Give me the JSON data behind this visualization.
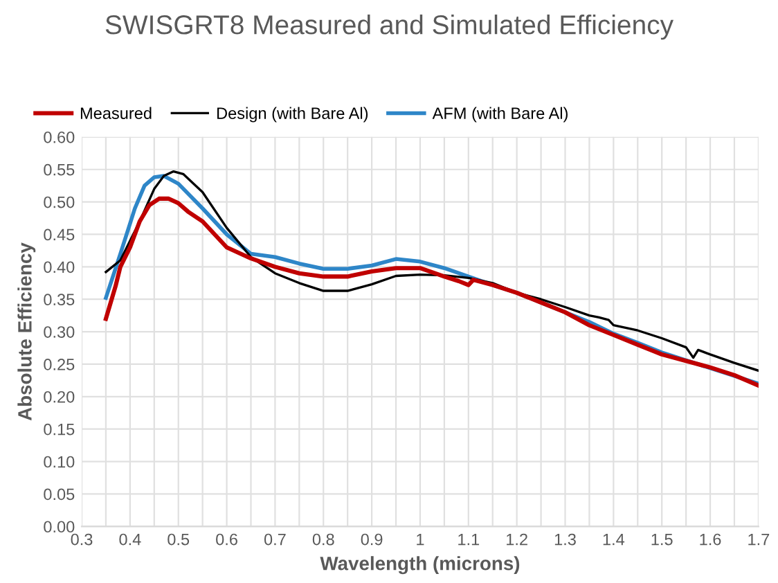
{
  "chart_data": {
    "type": "line",
    "title": "SWISGRT8 Measured and Simulated Efficiency",
    "xlabel": "Wavelength (microns)",
    "ylabel": "Absolute Efficiency",
    "xlim": [
      0.3,
      1.7
    ],
    "xticks": [
      0.3,
      {
        "value": 0.35,
        "label": null
      },
      0.4,
      {
        "value": 0.45,
        "label": null
      },
      0.5,
      {
        "value": 0.55,
        "label": null
      },
      0.6,
      {
        "value": 0.65,
        "label": null
      },
      0.7,
      {
        "value": 0.75,
        "label": null
      },
      0.8,
      {
        "value": 0.85,
        "label": null
      },
      0.9,
      {
        "value": 0.95,
        "label": null
      },
      1,
      {
        "value": 1.05,
        "label": null
      },
      1.1,
      {
        "value": 1.15,
        "label": null
      },
      1.2,
      {
        "value": 1.25,
        "label": null
      },
      1.3,
      {
        "value": 1.35,
        "label": null
      },
      1.4,
      {
        "value": 1.45,
        "label": null
      },
      1.5,
      {
        "value": 1.55,
        "label": null
      },
      1.6,
      {
        "value": 1.65,
        "label": null
      },
      1.7
    ],
    "ylim": [
      0,
      0.6
    ],
    "yticks": [
      {
        "value": 0,
        "label": "0.00"
      },
      {
        "value": 0.05,
        "label": "0.05"
      },
      {
        "value": 0.1,
        "label": "0.10"
      },
      {
        "value": 0.15,
        "label": "0.15"
      },
      {
        "value": 0.2,
        "label": "0.20"
      },
      {
        "value": 0.25,
        "label": "0.25"
      },
      {
        "value": 0.3,
        "label": "0.30"
      },
      {
        "value": 0.35,
        "label": "0.35"
      },
      {
        "value": 0.4,
        "label": "0.40"
      },
      {
        "value": 0.45,
        "label": "0.45"
      },
      {
        "value": 0.5,
        "label": "0.50"
      },
      {
        "value": 0.55,
        "label": "0.55"
      },
      {
        "value": 0.6,
        "label": "0.60"
      }
    ],
    "grid": true,
    "legend": "top",
    "marker": "none",
    "line_style": "solid",
    "series": [
      {
        "name": "Measured",
        "color": "#c00000",
        "x": [
          0.35,
          0.37,
          0.38,
          0.4,
          0.42,
          0.44,
          0.46,
          0.48,
          0.5,
          0.52,
          0.55,
          0.6,
          0.65,
          0.7,
          0.75,
          0.8,
          0.85,
          0.9,
          0.95,
          1.0,
          1.05,
          1.08,
          1.1,
          1.11,
          1.15,
          1.2,
          1.25,
          1.3,
          1.35,
          1.4,
          1.45,
          1.5,
          1.55,
          1.6,
          1.65,
          1.7
        ],
        "values": [
          0.32,
          0.37,
          0.4,
          0.43,
          0.47,
          0.495,
          0.505,
          0.505,
          0.498,
          0.485,
          0.47,
          0.43,
          0.413,
          0.4,
          0.39,
          0.385,
          0.385,
          0.393,
          0.398,
          0.398,
          0.385,
          0.378,
          0.372,
          0.38,
          0.372,
          0.36,
          0.345,
          0.33,
          0.31,
          0.295,
          0.28,
          0.265,
          0.255,
          0.245,
          0.233,
          0.217
        ]
      },
      {
        "name": "Design (with Bare Al)",
        "color": "#000000",
        "x": [
          0.35,
          0.38,
          0.42,
          0.45,
          0.47,
          0.49,
          0.51,
          0.55,
          0.6,
          0.65,
          0.7,
          0.75,
          0.8,
          0.85,
          0.9,
          0.95,
          1.0,
          1.05,
          1.1,
          1.15,
          1.2,
          1.25,
          1.3,
          1.35,
          1.37,
          1.39,
          1.4,
          1.45,
          1.5,
          1.55,
          1.565,
          1.575,
          1.6,
          1.65,
          1.7
        ],
        "values": [
          0.392,
          0.41,
          0.47,
          0.52,
          0.54,
          0.547,
          0.543,
          0.515,
          0.46,
          0.415,
          0.39,
          0.375,
          0.363,
          0.363,
          0.373,
          0.386,
          0.388,
          0.387,
          0.383,
          0.375,
          0.36,
          0.35,
          0.338,
          0.325,
          0.322,
          0.318,
          0.31,
          0.302,
          0.29,
          0.276,
          0.26,
          0.272,
          0.265,
          0.252,
          0.24
        ]
      },
      {
        "name": "AFM (with Bare Al)",
        "color": "#2e86c8",
        "x": [
          0.35,
          0.38,
          0.41,
          0.43,
          0.45,
          0.47,
          0.5,
          0.55,
          0.6,
          0.65,
          0.7,
          0.75,
          0.8,
          0.85,
          0.9,
          0.95,
          1.0,
          1.05,
          1.1,
          1.15,
          1.2,
          1.25,
          1.3,
          1.35,
          1.4,
          1.45,
          1.5,
          1.55,
          1.6,
          1.65,
          1.7
        ],
        "values": [
          0.352,
          0.42,
          0.49,
          0.525,
          0.538,
          0.54,
          0.528,
          0.49,
          0.45,
          0.42,
          0.415,
          0.405,
          0.397,
          0.397,
          0.402,
          0.412,
          0.408,
          0.398,
          0.385,
          0.372,
          0.36,
          0.345,
          0.33,
          0.315,
          0.297,
          0.283,
          0.268,
          0.256,
          0.244,
          0.232,
          0.22
        ]
      }
    ]
  }
}
